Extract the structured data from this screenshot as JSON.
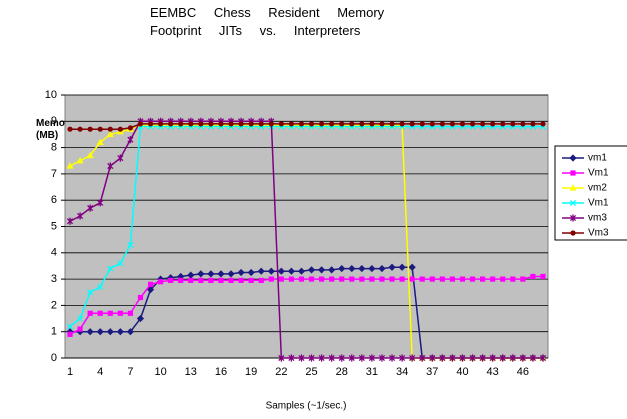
{
  "chart_data": {
    "type": "line",
    "title": "EEMBC Chess Resident Memory Footprint JITs vs. Interpreters",
    "y_label": "Memory (MB)",
    "x_label": "Samples (~1/sec.)",
    "categories": [
      1,
      null,
      null,
      4,
      null,
      null,
      7,
      null,
      null,
      10,
      null,
      null,
      13,
      null,
      null,
      16,
      null,
      null,
      19,
      null,
      null,
      22,
      null,
      null,
      25,
      null,
      null,
      28,
      null,
      null,
      31,
      null,
      null,
      34,
      null,
      null,
      37,
      null,
      null,
      40,
      null,
      null,
      43,
      null,
      null,
      46,
      null,
      null
    ],
    "ylim": [
      0,
      10
    ],
    "yticks": [
      0,
      1,
      2,
      3,
      4,
      5,
      6,
      7,
      8,
      9,
      10
    ],
    "grid": true,
    "series": [
      {
        "name": "vm1",
        "color": "#1a1a80",
        "values": [
          1,
          1,
          1,
          1,
          1,
          1,
          1,
          1.5,
          2.6,
          3,
          3.05,
          3.1,
          3.15,
          3.2,
          3.2,
          3.2,
          3.2,
          3.25,
          3.25,
          3.3,
          3.3,
          3.3,
          3.3,
          3.3,
          3.35,
          3.35,
          3.35,
          3.4,
          3.4,
          3.4,
          3.4,
          3.4,
          3.45,
          3.45,
          3.45,
          0,
          0,
          0,
          0,
          0,
          0,
          0,
          0,
          0,
          0,
          0,
          0,
          0
        ]
      },
      {
        "name": "Vm1",
        "color": "#ff00ff",
        "values": [
          0.9,
          1.1,
          1.7,
          1.7,
          1.7,
          1.7,
          1.7,
          2.3,
          2.8,
          2.9,
          2.95,
          2.95,
          2.95,
          2.95,
          2.95,
          2.95,
          2.95,
          2.95,
          2.95,
          2.95,
          3,
          3,
          3,
          3,
          3,
          3,
          3,
          3,
          3,
          3,
          3,
          3,
          3,
          3,
          3,
          3,
          3,
          3,
          3,
          3,
          3,
          3,
          3,
          3,
          3,
          3,
          3.1,
          3.1
        ]
      },
      {
        "name": "vm2",
        "color": "#ffff00",
        "values": [
          7.3,
          7.5,
          7.7,
          8.2,
          8.5,
          8.6,
          8.7,
          8.85,
          8.85,
          8.85,
          8.85,
          8.85,
          8.85,
          8.85,
          8.85,
          8.85,
          8.85,
          8.85,
          8.85,
          8.85,
          8.85,
          8.85,
          8.85,
          8.85,
          8.85,
          8.85,
          8.85,
          8.85,
          8.85,
          8.85,
          8.85,
          8.85,
          8.85,
          8.85,
          0,
          0,
          0,
          0,
          0,
          0,
          0,
          0,
          0,
          0,
          0,
          0,
          0,
          0
        ]
      },
      {
        "name": "Vm1",
        "color": "#00ffff",
        "values": [
          1.2,
          1.5,
          2.5,
          2.7,
          3.4,
          3.6,
          4.3,
          8.8,
          8.8,
          8.8,
          8.8,
          8.8,
          8.8,
          8.8,
          8.8,
          8.8,
          8.8,
          8.8,
          8.8,
          8.8,
          8.8,
          8.8,
          8.8,
          8.8,
          8.8,
          8.8,
          8.8,
          8.8,
          8.8,
          8.8,
          8.8,
          8.8,
          8.8,
          8.8,
          8.8,
          8.8,
          8.8,
          8.8,
          8.8,
          8.8,
          8.8,
          8.8,
          8.8,
          8.8,
          8.8,
          8.8,
          8.8,
          8.8
        ]
      },
      {
        "name": "vm3",
        "color": "#800080",
        "values": [
          5.2,
          5.4,
          5.7,
          5.9,
          7.3,
          7.6,
          8.3,
          9,
          9,
          9,
          9,
          9,
          9,
          9,
          9,
          9,
          9,
          9,
          9,
          9,
          9,
          0,
          0,
          0,
          0,
          0,
          0,
          0,
          0,
          0,
          0,
          0,
          0,
          0,
          0,
          0,
          0,
          0,
          0,
          0,
          0,
          0,
          0,
          0,
          0,
          0,
          0,
          0
        ]
      },
      {
        "name": "Vm3",
        "color": "#800000",
        "values": [
          8.7,
          8.7,
          8.7,
          8.7,
          8.7,
          8.7,
          8.75,
          8.9,
          8.9,
          8.9,
          8.9,
          8.9,
          8.9,
          8.9,
          8.9,
          8.9,
          8.9,
          8.9,
          8.9,
          8.9,
          8.9,
          8.9,
          8.9,
          8.9,
          8.9,
          8.9,
          8.9,
          8.9,
          8.9,
          8.9,
          8.9,
          8.9,
          8.9,
          8.9,
          8.9,
          8.9,
          8.9,
          8.9,
          8.9,
          8.9,
          8.9,
          8.9,
          8.9,
          8.9,
          8.9,
          8.9,
          8.9,
          8.9
        ]
      }
    ]
  }
}
